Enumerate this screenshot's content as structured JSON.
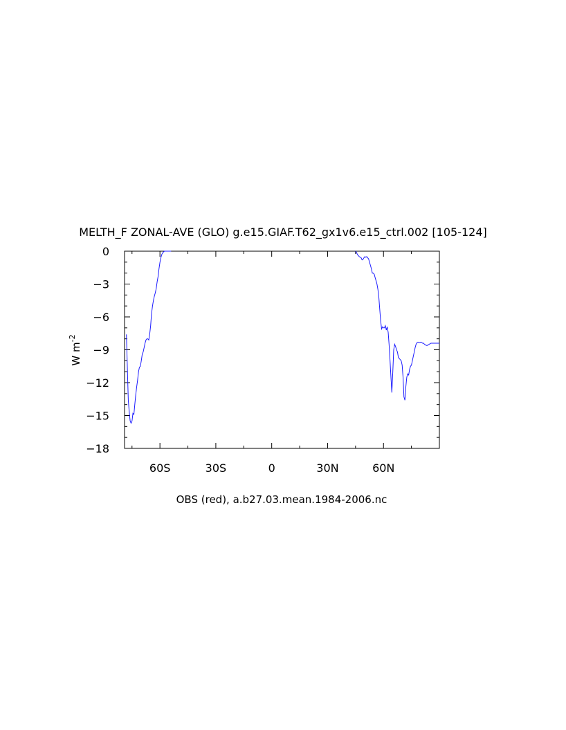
{
  "chart_data": {
    "type": "line",
    "title": "MELTH_F ZONAL-AVE (GLO) g.e15.GIAF.T62_gx1v6.e15_ctrl.002 [105-124]",
    "xlabel": "OBS (red), a.b27.03.mean.1984-2006.nc",
    "ylabel": "W m",
    "ylabel_superscript": "-2",
    "xlim": [
      -79,
      90
    ],
    "ylim": [
      -18,
      0
    ],
    "x_ticks": [
      {
        "value": -60,
        "label": "60S"
      },
      {
        "value": -30,
        "label": "30S"
      },
      {
        "value": 0,
        "label": "0"
      },
      {
        "value": 30,
        "label": "30N"
      },
      {
        "value": 60,
        "label": "60N"
      }
    ],
    "y_ticks": [
      {
        "value": 0,
        "label": "0"
      },
      {
        "value": -3,
        "label": "−3"
      },
      {
        "value": -6,
        "label": "−6"
      },
      {
        "value": -9,
        "label": "−9"
      },
      {
        "value": -12,
        "label": "−12"
      },
      {
        "value": -15,
        "label": "−15"
      },
      {
        "value": -18,
        "label": "−18"
      }
    ],
    "series_color": "#1a1aff",
    "series": [
      {
        "x": [
          -78,
          -77.5,
          -77,
          -76.5,
          -76,
          -75.5,
          -75,
          -74.5,
          -74,
          -73.5,
          -73,
          -72.5,
          -72,
          -71.5,
          -71,
          -70.5,
          -70,
          -69.5,
          -69,
          -68.5,
          -68,
          -67.5,
          -67,
          -66.5,
          -66,
          -65.5,
          -65,
          -64.5,
          -64,
          -63.5,
          -63,
          -62.5,
          -62,
          -61.5,
          -61,
          -60.5,
          -60,
          -59.5,
          -59,
          -58.5,
          -58,
          -57.5,
          -57,
          -56.5,
          -56,
          -55.5,
          -55,
          -54.5,
          -54
        ],
        "y": [
          -7.6,
          -10.5,
          -13.6,
          -14.6,
          -15.5,
          -15.7,
          -15.5,
          -14.8,
          -14.9,
          -14.0,
          -13.1,
          -12.4,
          -11.8,
          -11.0,
          -10.6,
          -10.5,
          -10.0,
          -9.4,
          -9.2,
          -8.8,
          -8.4,
          -8.1,
          -8.0,
          -8.0,
          -8.1,
          -7.6,
          -6.8,
          -5.7,
          -5.0,
          -4.5,
          -4.1,
          -3.8,
          -3.4,
          -2.8,
          -2.3,
          -1.6,
          -1.0,
          -0.6,
          -0.3,
          -0.15,
          -0.05,
          0,
          0,
          0,
          0,
          0,
          0,
          0,
          0
        ]
      },
      {
        "x": [
          45,
          45.5,
          46,
          46.5,
          47,
          47.5,
          48,
          48.5,
          49,
          49.5,
          50,
          50.5,
          51,
          51.5,
          52,
          52.5,
          53,
          53.5,
          54,
          54.5,
          55,
          55.5,
          56,
          56.5,
          57,
          57.5,
          58,
          58.5,
          59,
          59.5,
          60,
          60.5,
          61,
          61.5,
          62,
          62.5,
          63,
          63.5,
          64,
          64.5,
          65,
          65.5,
          66,
          66.5,
          67,
          67.5,
          68,
          68.5,
          69,
          69.5,
          70,
          70.5,
          71,
          71.5,
          72,
          72.5,
          73,
          73.5,
          74,
          74.5,
          75,
          75.5,
          76,
          76.5,
          77,
          77.5,
          78,
          78.5,
          79,
          79.5,
          80,
          80.5,
          81,
          81.5,
          82,
          82.5,
          83,
          83.5,
          84,
          84.5,
          85,
          85.5,
          86,
          86.5,
          87,
          87.5,
          88,
          88.5,
          89,
          89.5,
          90
        ],
        "y": [
          0,
          -0.1,
          -0.3,
          -0.4,
          -0.5,
          -0.55,
          -0.6,
          -0.8,
          -0.75,
          -0.6,
          -0.5,
          -0.55,
          -0.5,
          -0.6,
          -0.7,
          -1.0,
          -1.3,
          -1.6,
          -2.0,
          -2.0,
          -2.1,
          -2.4,
          -2.7,
          -3.0,
          -3.5,
          -4.2,
          -5.3,
          -6.4,
          -7.1,
          -6.9,
          -7.0,
          -7.0,
          -6.8,
          -7.2,
          -6.9,
          -7.4,
          -8.5,
          -10.0,
          -11.5,
          -12.9,
          -11.0,
          -9.0,
          -8.5,
          -8.7,
          -9.0,
          -9.2,
          -9.7,
          -9.8,
          -9.9,
          -10.0,
          -10.4,
          -11.5,
          -13.3,
          -13.6,
          -12.4,
          -11.5,
          -11.2,
          -11.3,
          -10.8,
          -10.5,
          -10.4,
          -10.0,
          -9.6,
          -9.2,
          -8.8,
          -8.5,
          -8.35,
          -8.3,
          -8.35,
          -8.35,
          -8.3,
          -8.35,
          -8.4,
          -8.4,
          -8.5,
          -8.55,
          -8.6,
          -8.6,
          -8.55,
          -8.5,
          -8.45,
          -8.4,
          -8.4,
          -8.4,
          -8.4,
          -8.4,
          -8.4,
          -8.4,
          -8.4,
          -8.4,
          -8.4
        ]
      }
    ]
  }
}
